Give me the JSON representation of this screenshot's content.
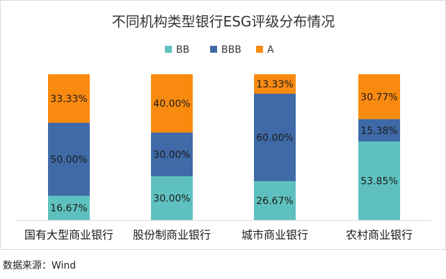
{
  "chart_data": {
    "type": "bar",
    "stacked": true,
    "percent": true,
    "title": "不同机构类型银行ESG评级分布情况",
    "categories": [
      "国有大型商业银行",
      "股份制商业银行",
      "城市商业银行",
      "农村商业银行"
    ],
    "series": [
      {
        "name": "BB",
        "color": "#5fc1bf",
        "values": [
          16.67,
          30.0,
          26.67,
          53.85
        ],
        "labels": [
          "16.67%",
          "30.00%",
          "26.67%",
          "53.85%"
        ]
      },
      {
        "name": "BBB",
        "color": "#3f6aa7",
        "values": [
          50.0,
          30.0,
          60.0,
          15.38
        ],
        "labels": [
          "50.00%",
          "30.00%",
          "60.00%",
          "15.38%"
        ]
      },
      {
        "name": "A",
        "color": "#f98a10",
        "values": [
          33.33,
          40.0,
          13.33,
          30.77
        ],
        "labels": [
          "33.33%",
          "40.00%",
          "13.33%",
          "30.77%"
        ]
      }
    ],
    "legend_position": "top",
    "ylim": [
      0,
      100
    ],
    "grid": false
  },
  "source_text": "数据来源：Wind"
}
